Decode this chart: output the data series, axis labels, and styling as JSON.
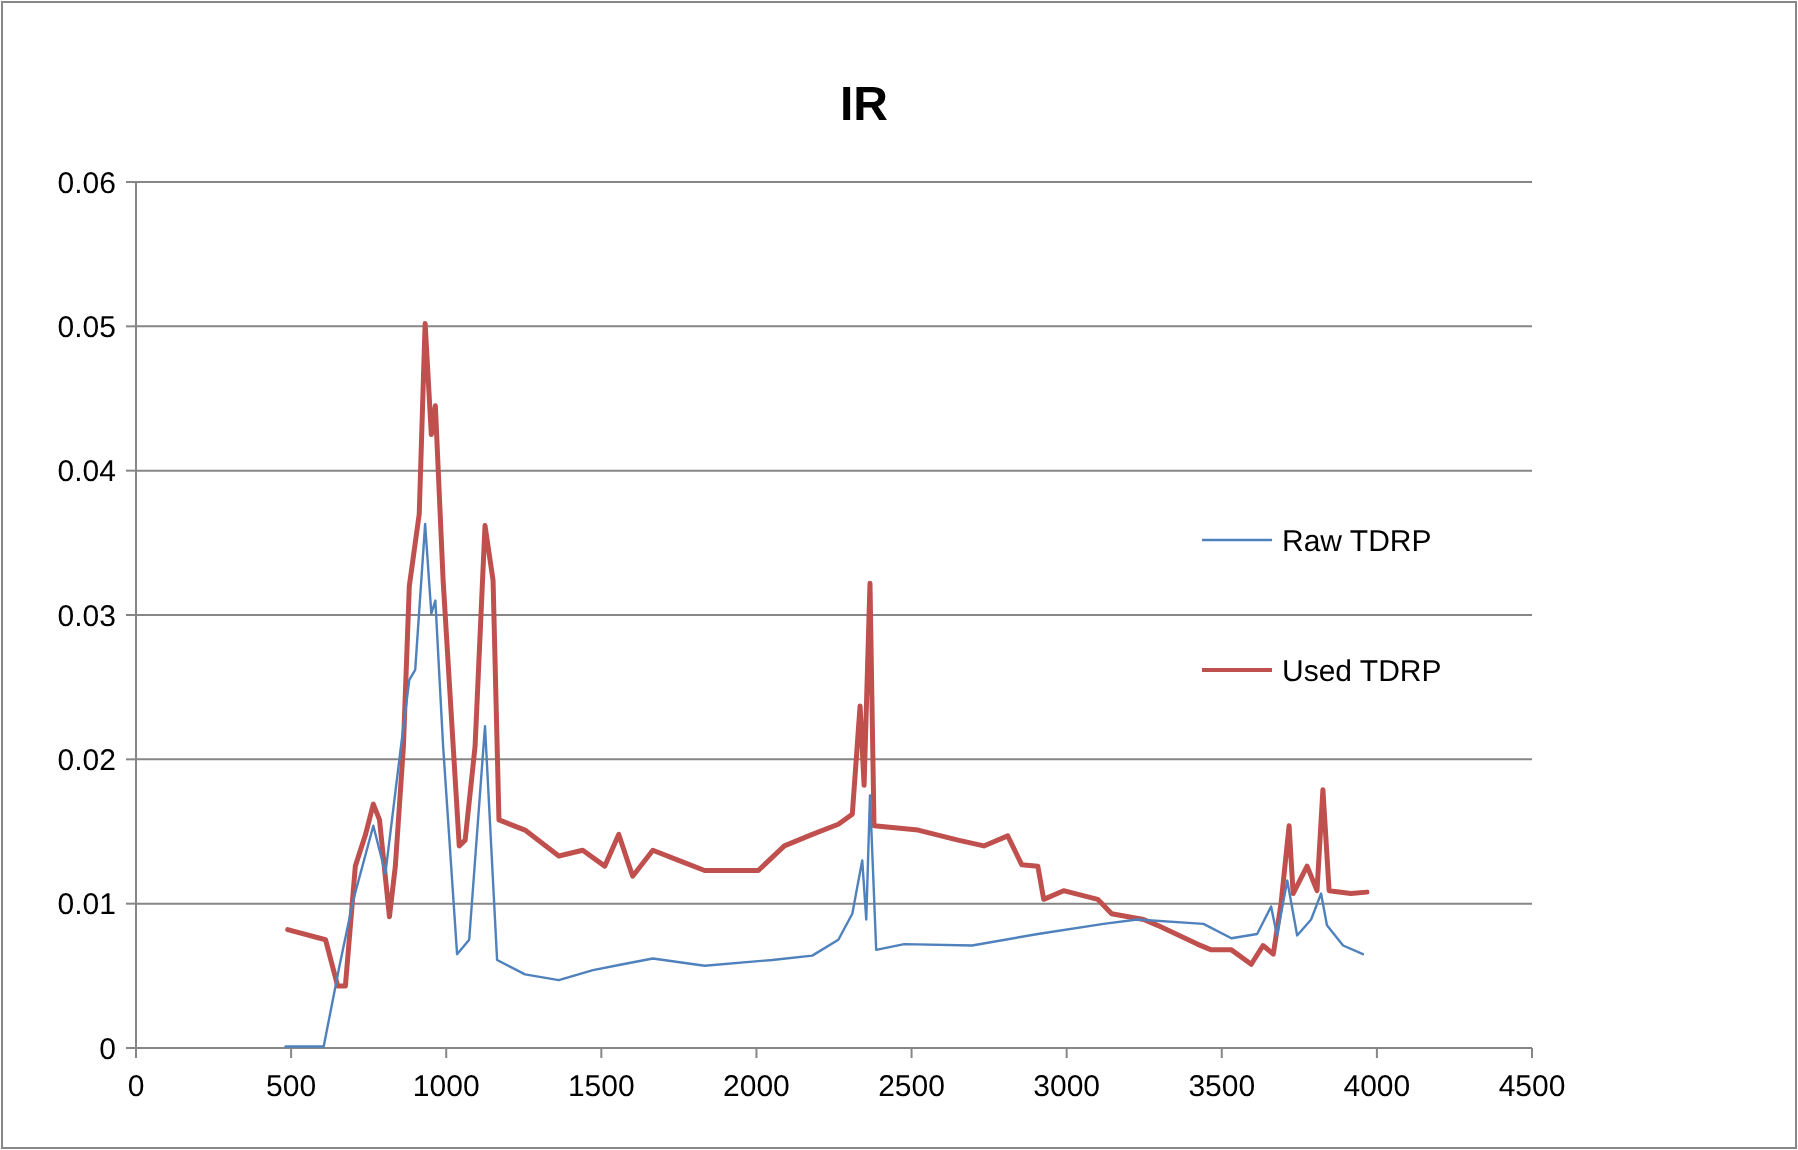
{
  "chart_data": {
    "type": "line",
    "title": "IR",
    "xlim": [
      0,
      4500
    ],
    "xticks": [
      0,
      500,
      1000,
      1500,
      2000,
      2500,
      3000,
      3500,
      4000,
      4500
    ],
    "ylim": [
      0,
      0.06
    ],
    "yticks": [
      {
        "value": 0,
        "label": "0"
      },
      {
        "value": 0.01,
        "label": "0.01"
      },
      {
        "value": 0.02,
        "label": "0.02"
      },
      {
        "value": 0.03,
        "label": "0.03"
      },
      {
        "value": 0.04,
        "label": "0.04"
      },
      {
        "value": 0.05,
        "label": "0.05"
      },
      {
        "value": 0.06,
        "label": "0.06"
      }
    ],
    "grid": "y",
    "legend": "right",
    "marker": "none",
    "series": [
      {
        "name": "Raw TDRP",
        "color": "#4f81bd",
        "x": [
          482,
          605,
          656,
          701,
          765,
          804,
          849,
          881,
          900,
          932,
          952,
          965,
          990,
          1035,
          1074,
          1125,
          1164,
          1254,
          1363,
          1473,
          1569,
          1666,
          1833,
          2051,
          2180,
          2264,
          2309,
          2341,
          2354,
          2366,
          2386,
          2476,
          2695,
          2907,
          3119,
          3228,
          3441,
          3531,
          3614,
          3659,
          3678,
          3711,
          3743,
          3788,
          3820,
          3839,
          3891,
          3955
        ],
        "values": [
          0.0001,
          0.0001,
          0.0057,
          0.0103,
          0.0154,
          0.0121,
          0.02,
          0.0255,
          0.0262,
          0.0363,
          0.0301,
          0.031,
          0.0209,
          0.0065,
          0.0075,
          0.0223,
          0.0061,
          0.0051,
          0.0047,
          0.0054,
          0.0058,
          0.0062,
          0.0057,
          0.0061,
          0.0064,
          0.0075,
          0.0093,
          0.013,
          0.0089,
          0.0175,
          0.0068,
          0.0072,
          0.0071,
          0.0079,
          0.0086,
          0.0089,
          0.0086,
          0.0076,
          0.0079,
          0.0098,
          0.0078,
          0.0116,
          0.0078,
          0.0089,
          0.0107,
          0.0085,
          0.0071,
          0.0065
        ]
      },
      {
        "name": "Used TDRP",
        "color": "#c0504d",
        "x": [
          489,
          611,
          650,
          675,
          707,
          740,
          765,
          785,
          817,
          836,
          862,
          881,
          913,
          932,
          952,
          965,
          990,
          1042,
          1061,
          1093,
          1125,
          1151,
          1170,
          1254,
          1363,
          1440,
          1511,
          1556,
          1601,
          1666,
          1749,
          1833,
          2006,
          2090,
          2180,
          2264,
          2309,
          2334,
          2347,
          2366,
          2379,
          2521,
          2650,
          2733,
          2810,
          2855,
          2907,
          2926,
          2990,
          3100,
          3145,
          3248,
          3293,
          3421,
          3466,
          3531,
          3595,
          3633,
          3666,
          3691,
          3717,
          3730,
          3775,
          3807,
          3826,
          3846,
          3916,
          3968
        ],
        "values": [
          0.0082,
          0.0075,
          0.0043,
          0.0043,
          0.0126,
          0.0148,
          0.0169,
          0.0158,
          0.0091,
          0.0126,
          0.0209,
          0.032,
          0.037,
          0.0502,
          0.0425,
          0.0445,
          0.0324,
          0.014,
          0.0144,
          0.0209,
          0.0362,
          0.0324,
          0.0158,
          0.0151,
          0.0133,
          0.0137,
          0.0126,
          0.0148,
          0.0119,
          0.0137,
          0.013,
          0.0123,
          0.0123,
          0.014,
          0.0148,
          0.0155,
          0.0162,
          0.0237,
          0.0182,
          0.0322,
          0.0154,
          0.0151,
          0.0144,
          0.014,
          0.0147,
          0.0127,
          0.0126,
          0.0103,
          0.0109,
          0.0103,
          0.0093,
          0.0089,
          0.0085,
          0.0072,
          0.0068,
          0.0068,
          0.0058,
          0.0071,
          0.0065,
          0.01,
          0.0154,
          0.0107,
          0.0126,
          0.0109,
          0.0179,
          0.0109,
          0.0107,
          0.0108
        ]
      }
    ]
  }
}
